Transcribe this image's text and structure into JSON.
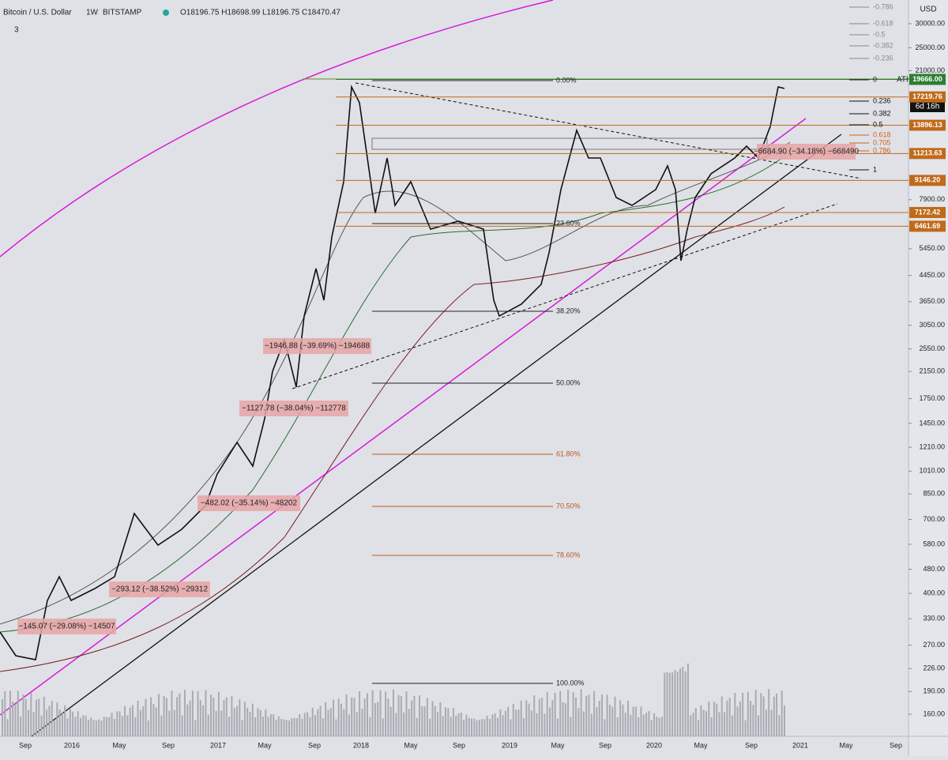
{
  "header": {
    "symbol": "Bitcoin / U.S. Dollar",
    "interval": "1W",
    "exchange": "BITSTAMP",
    "ohlc": "O18196.75 H18698.99 L18196.75 C18470.47",
    "indicator_count": "3"
  },
  "price_axis": {
    "currency": "USD",
    "scale": "log",
    "ylim": [
      160,
      30000
    ],
    "ticks": [
      {
        "value": 30000,
        "label": "30000.00"
      },
      {
        "value": 25000,
        "label": "25000.00"
      },
      {
        "value": 21000,
        "label": "21000.00"
      },
      {
        "value": 7900,
        "label": "7900.00"
      },
      {
        "value": 5450,
        "label": "5450.00"
      },
      {
        "value": 4450,
        "label": "4450.00"
      },
      {
        "value": 3650,
        "label": "3650.00"
      },
      {
        "value": 3050,
        "label": "3050.00"
      },
      {
        "value": 2550,
        "label": "2550.00"
      },
      {
        "value": 2150,
        "label": "2150.00"
      },
      {
        "value": 1750,
        "label": "1750.00"
      },
      {
        "value": 1450,
        "label": "1450.00"
      },
      {
        "value": 1210,
        "label": "1210.00"
      },
      {
        "value": 1010,
        "label": "1010.00"
      },
      {
        "value": 850,
        "label": "850.00"
      },
      {
        "value": 700,
        "label": "700.00"
      },
      {
        "value": 580,
        "label": "580.00"
      },
      {
        "value": 480,
        "label": "480.00"
      },
      {
        "value": 400,
        "label": "400.00"
      },
      {
        "value": 330,
        "label": "330.00"
      },
      {
        "value": 270,
        "label": "270.00"
      },
      {
        "value": 226,
        "label": "226.00"
      },
      {
        "value": 190,
        "label": "190.00"
      },
      {
        "value": 160,
        "label": "160.00"
      }
    ]
  },
  "price_tags": [
    {
      "value": 19666,
      "label": "19666.00",
      "color": "#2e7d32"
    },
    {
      "value": 17219.76,
      "label": "17219.76",
      "color": "#c06a1a"
    },
    {
      "value": 13896.13,
      "label": "13896.13",
      "color": "#c06a1a"
    },
    {
      "value": 11213.63,
      "label": "11213.63",
      "color": "#c06a1a"
    },
    {
      "value": 9146.2,
      "label": "9146.20",
      "color": "#c06a1a"
    },
    {
      "value": 7172.42,
      "label": "7172.42",
      "color": "#c06a1a"
    },
    {
      "value": 6461.69,
      "label": "6461.69",
      "color": "#c06a1a"
    }
  ],
  "countdown": "6d 16h",
  "time_axis": [
    "Sep",
    "2016",
    "May",
    "Sep",
    "2017",
    "May",
    "Sep",
    "2018",
    "May",
    "Sep",
    "2019",
    "May",
    "Sep",
    "2020",
    "May",
    "Sep",
    "2021",
    "May",
    "Sep"
  ],
  "fib_retracement": [
    "0.00%",
    "23.60%",
    "38.20%",
    "50.00%",
    "61.80%",
    "70.50%",
    "78.60%",
    "100.00%"
  ],
  "fib_extension": [
    "-0.786",
    "-0.618",
    "-0.5",
    "-0.382",
    "-0.236",
    "0",
    "0.236",
    "0.382",
    "0.5",
    "0.618",
    "0.705",
    "0.786",
    "1"
  ],
  "ath_label": "ATH",
  "annotations": [
    "−145.07 (−29.08%) −14507",
    "−293.12 (−38.52%) −29312",
    "−482.02 (−35.14%) −48202",
    "−1127.78 (−38.04%) −112778",
    "−1946.88 (−39.69%) −194688",
    "−6684.90 (−34.18%) −668490"
  ]
}
